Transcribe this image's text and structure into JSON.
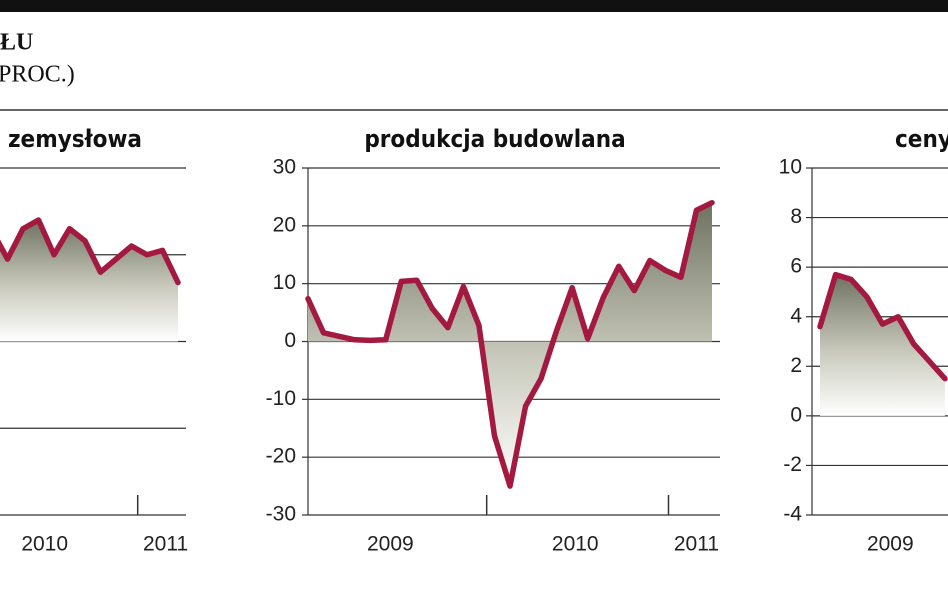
{
  "header": {
    "line1": "ŁU",
    "line2": "PROC.)"
  },
  "chart_data": [
    {
      "type": "line",
      "title": "zemysłowa",
      "x": [
        14,
        15,
        16,
        17,
        18,
        19,
        20,
        21,
        22,
        23,
        24,
        25,
        26
      ],
      "series": [
        {
          "color": "#a3193f",
          "values": [
            12.8,
            9.5,
            13,
            14,
            10,
            13,
            11.6,
            8,
            9.5,
            11,
            10,
            10.5,
            6.8
          ]
        }
      ],
      "xlim": [
        14,
        26
      ],
      "xticks": [
        {
          "value": 17.4,
          "label": "2010"
        },
        {
          "value": 25.2,
          "label": "2011"
        }
      ],
      "xtick_marks": [
        23.4
      ],
      "ylim": [
        -20,
        20
      ],
      "yticks": [
        -20,
        -10,
        0,
        10,
        20
      ],
      "ytick_labels": false,
      "grid": true,
      "fill": true
    },
    {
      "type": "line",
      "title": "produkcja budowlana",
      "x": [
        0,
        1,
        2,
        3,
        4,
        5,
        6,
        7,
        8,
        9,
        10,
        11,
        12,
        13,
        14,
        15,
        16,
        17,
        18,
        19,
        20,
        21,
        22,
        23,
        24,
        25,
        26
      ],
      "series": [
        {
          "color": "#a3193f",
          "values": [
            7.4,
            1.5,
            0.9,
            0.3,
            0.2,
            0.3,
            10.4,
            10.6,
            5.7,
            2.4,
            9.5,
            2.8,
            -16.3,
            -25,
            -11.2,
            -6.4,
            1.9,
            9.3,
            0.5,
            7.6,
            13,
            8.8,
            14,
            12.3,
            11.1,
            22.7,
            24
          ]
        }
      ],
      "xlim": [
        0,
        26
      ],
      "xticks": [
        {
          "value": 5.3,
          "label": "2009"
        },
        {
          "value": 17.2,
          "label": "2010"
        },
        {
          "value": 25,
          "label": "2011"
        }
      ],
      "xtick_marks": [
        11.5,
        23.2
      ],
      "ylim": [
        -30,
        30
      ],
      "yticks": [
        -30,
        -20,
        -10,
        0,
        10,
        20,
        30
      ],
      "ytick_labels": true,
      "grid": true,
      "fill": true
    },
    {
      "type": "line",
      "title": "ceny",
      "x": [
        0,
        1,
        2,
        3,
        4,
        5,
        6,
        7,
        8
      ],
      "series": [
        {
          "color": "#a3193f",
          "values": [
            3.6,
            5.7,
            5.5,
            4.8,
            3.7,
            4,
            2.9,
            2.2,
            1.5
          ]
        }
      ],
      "xlim": [
        0,
        8
      ],
      "xticks": [
        {
          "value": 4.5,
          "label": "2009"
        }
      ],
      "xtick_marks": [],
      "ylim": [
        -4,
        10
      ],
      "yticks": [
        -4,
        -2,
        0,
        2,
        4,
        6,
        8,
        10
      ],
      "ytick_labels": true,
      "grid": true,
      "fill": true
    }
  ]
}
